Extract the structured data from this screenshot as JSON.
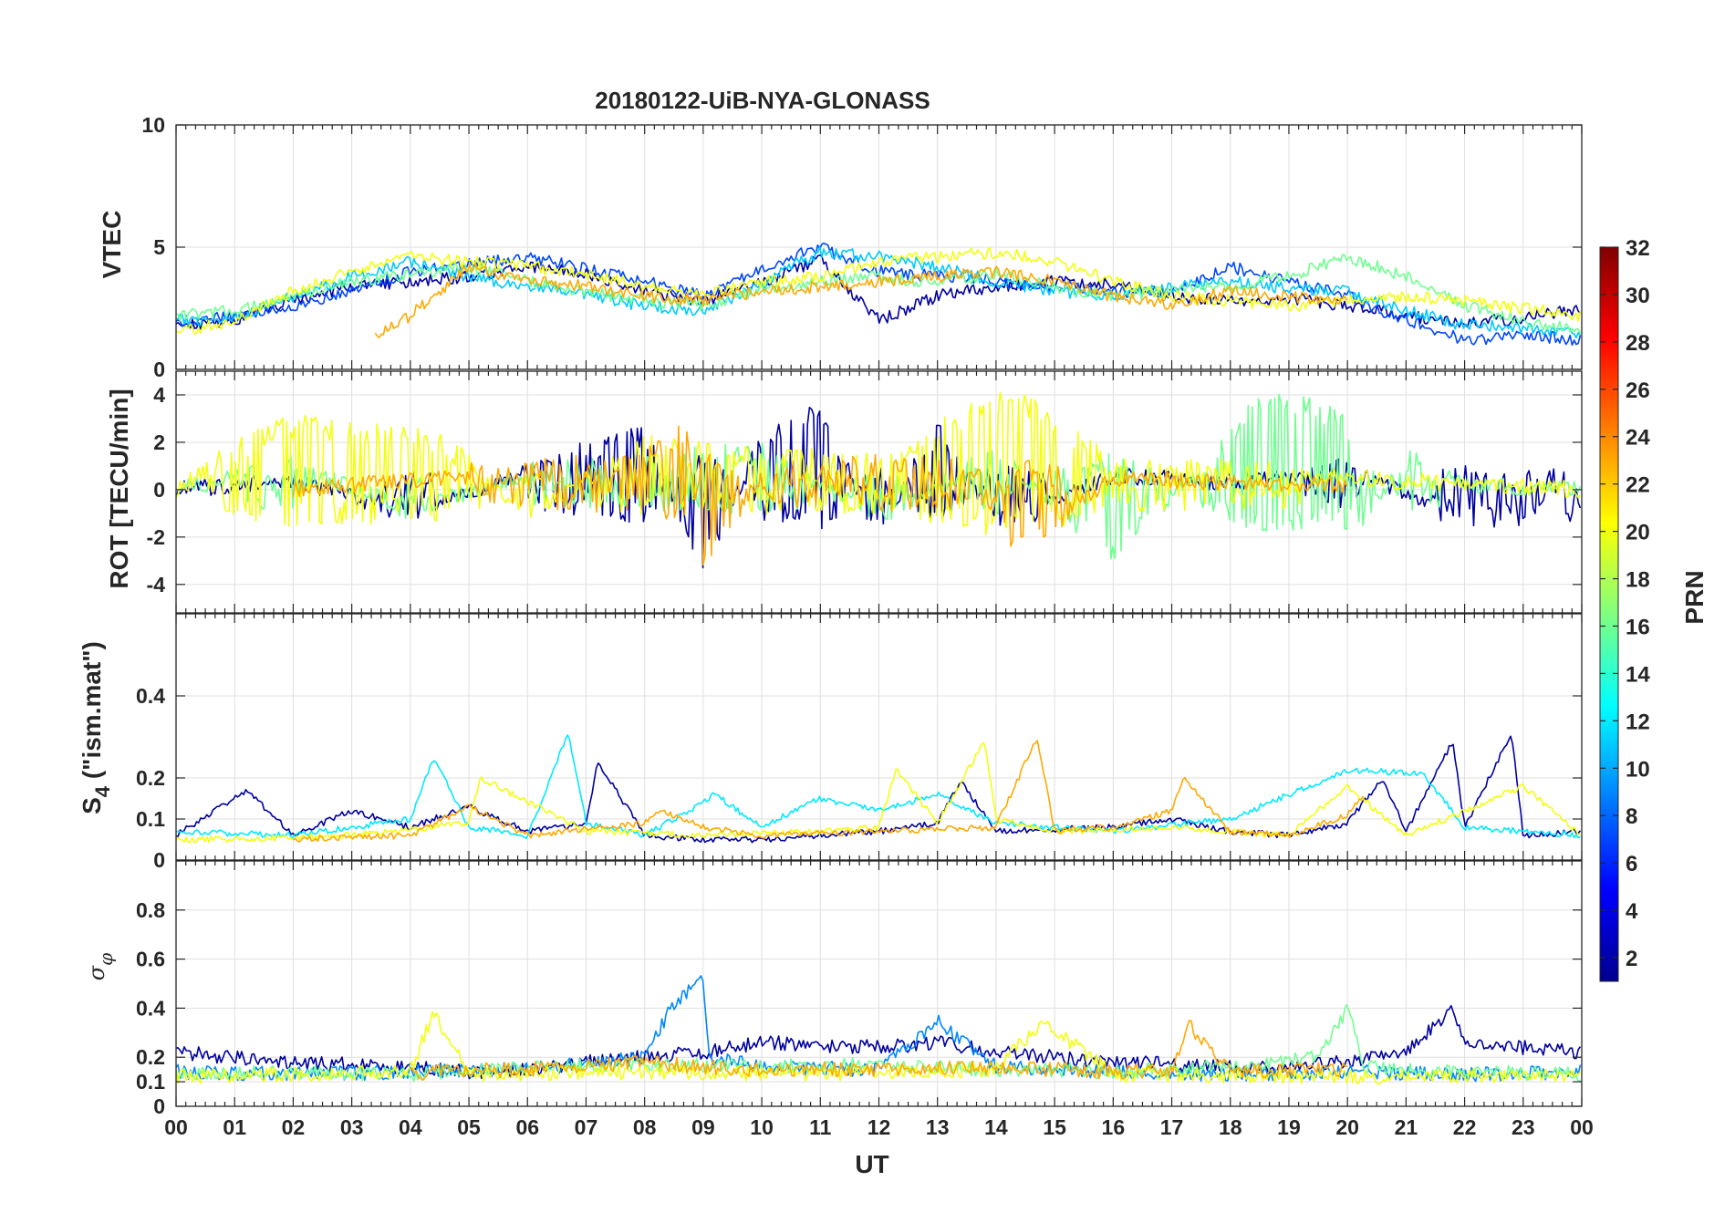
{
  "chart_data": [
    {
      "type": "line",
      "panel": "vtec",
      "title": "20180122-UiB-NYA-GLONASS",
      "ylabel": "VTEC",
      "ylim": [
        0,
        10
      ],
      "yticks": [
        0,
        5,
        10
      ],
      "xlim": [
        0,
        24
      ],
      "series_note": "multiple GLONASS PRN traces, coloured by PRN",
      "series": [
        {
          "prn": 2,
          "x": [
            0,
            1,
            2,
            3,
            4,
            5,
            6,
            7,
            8,
            9,
            10,
            11,
            12,
            13,
            14,
            15,
            16,
            17,
            18,
            19,
            20,
            21,
            22,
            23,
            24
          ],
          "y": [
            1.8,
            2.0,
            2.8,
            3.4,
            3.6,
            3.8,
            4.2,
            3.9,
            3.2,
            2.8,
            3.5,
            4.5,
            2.0,
            3.0,
            3.4,
            3.6,
            3.5,
            3.0,
            2.8,
            2.9,
            2.6,
            2.2,
            1.9,
            2.1,
            2.5
          ]
        },
        {
          "prn": 7,
          "x": [
            0,
            1,
            2,
            3,
            4,
            5,
            6,
            7,
            8,
            9,
            10,
            11,
            12,
            13,
            14,
            15,
            16,
            17,
            18,
            19,
            20,
            21,
            22,
            23,
            24
          ],
          "y": [
            1.9,
            2.2,
            2.6,
            3.2,
            4.0,
            4.3,
            4.6,
            4.1,
            3.6,
            3.0,
            4.2,
            5.0,
            4.0,
            3.8,
            3.6,
            3.4,
            3.2,
            3.1,
            4.2,
            3.6,
            3.0,
            2.0,
            1.2,
            1.4,
            1.2
          ]
        },
        {
          "prn": 11,
          "x": [
            0,
            1,
            2,
            3,
            4,
            5,
            6,
            7,
            8,
            9,
            10,
            11,
            12,
            13,
            14,
            15,
            16,
            17,
            18,
            19,
            20,
            21,
            22,
            23,
            24
          ],
          "y": [
            2.0,
            2.1,
            3.0,
            3.8,
            4.4,
            3.8,
            3.4,
            3.0,
            2.6,
            2.4,
            3.5,
            4.8,
            4.6,
            4.2,
            3.6,
            3.2,
            3.0,
            3.4,
            3.6,
            3.3,
            3.2,
            2.4,
            1.8,
            1.7,
            1.4
          ]
        },
        {
          "prn": 16,
          "x": [
            0,
            1,
            2,
            3,
            4,
            5,
            6,
            7,
            8,
            9,
            10,
            11,
            12,
            13,
            14,
            15,
            16,
            17,
            18,
            19,
            20,
            21,
            22,
            23,
            24
          ],
          "y": [
            2.2,
            2.4,
            3.0,
            3.6,
            3.9,
            4.2,
            3.6,
            3.2,
            2.8,
            2.6,
            3.3,
            3.6,
            3.8,
            3.5,
            3.9,
            3.4,
            3.0,
            3.2,
            3.4,
            3.8,
            4.6,
            3.8,
            2.6,
            2.0,
            1.6
          ]
        },
        {
          "prn": 20,
          "x": [
            0,
            1,
            2,
            3,
            4,
            5,
            6,
            7,
            8,
            9,
            10,
            11,
            12,
            13,
            14,
            15,
            16,
            17,
            18,
            19,
            20,
            21,
            22,
            23,
            24
          ],
          "y": [
            1.5,
            2.0,
            3.2,
            4.0,
            4.6,
            4.4,
            4.2,
            3.9,
            3.4,
            3.0,
            3.6,
            3.8,
            4.4,
            4.6,
            4.8,
            4.4,
            3.6,
            3.0,
            2.8,
            2.6,
            2.8,
            3.0,
            2.8,
            2.5,
            2.2
          ]
        },
        {
          "prn": 23,
          "x": [
            3.4,
            4,
            5,
            6,
            7,
            8,
            9,
            10,
            11,
            12,
            13,
            14,
            15,
            16,
            17,
            18,
            19,
            20
          ],
          "y": [
            1.4,
            2.2,
            4.2,
            3.6,
            3.4,
            3.0,
            2.8,
            3.2,
            3.4,
            3.6,
            3.8,
            4.0,
            3.6,
            3.0,
            2.6,
            3.2,
            3.0,
            2.8
          ]
        }
      ],
      "xlabel": ""
    },
    {
      "type": "line",
      "panel": "rot",
      "ylabel": "ROT [TECU/min]",
      "ylim": [
        -5.2,
        5
      ],
      "yticks": [
        -4,
        -2,
        0,
        2,
        4
      ],
      "xlim": [
        0,
        24
      ],
      "series_note": "rate of TEC, fluctuating about 0 with peaks up to about +4 and -3",
      "series": [
        {
          "prn": 2,
          "x": [
            0,
            2,
            4,
            6,
            8,
            9,
            10,
            11,
            12,
            13,
            14,
            16,
            18,
            20,
            22,
            24
          ],
          "y": [
            0,
            0.4,
            -1.0,
            0.8,
            2.3,
            -3.0,
            2.0,
            3.2,
            -1.8,
            2.5,
            -1.5,
            0.6,
            0.3,
            0.8,
            -1.2,
            -0.8
          ]
        },
        {
          "prn": 16,
          "x": [
            0,
            2,
            4,
            6,
            8,
            10,
            12,
            14,
            16,
            18,
            18.5,
            20,
            20.2,
            21,
            22,
            24
          ],
          "y": [
            0,
            1.0,
            -0.8,
            0.6,
            1.0,
            1.6,
            -1.2,
            1.4,
            -2.6,
            2.0,
            3.8,
            3.0,
            -1.5,
            1.2,
            0.2,
            0
          ]
        },
        {
          "prn": 20,
          "x": [
            0,
            1.8,
            4.5,
            6,
            8,
            9.2,
            12,
            14.3,
            16,
            20,
            24
          ],
          "y": [
            0,
            2.7,
            2.0,
            -1.0,
            1.8,
            1.4,
            1.2,
            4.0,
            1.0,
            0.5,
            0
          ]
        },
        {
          "prn": 23,
          "x": [
            2,
            4,
            6,
            8,
            8.7,
            9,
            10,
            12,
            14,
            14.3,
            16,
            18,
            20
          ],
          "y": [
            0,
            0.4,
            0.8,
            1.2,
            2.6,
            -2.9,
            0.6,
            1.0,
            0.8,
            -2.6,
            0.5,
            0.3,
            0.2
          ]
        }
      ],
      "xlabel": ""
    },
    {
      "type": "line",
      "panel": "s4",
      "ylabel": "S_4 (\"ism.mat\")",
      "ylabel_main": "S",
      "ylabel_sub": "4",
      "ylabel_rest": " (\"ism.mat\")",
      "ylim": [
        0,
        0.6
      ],
      "yticks": [
        0,
        0.1,
        0.2,
        0.4
      ],
      "xlim": [
        0,
        24
      ],
      "series_note": "amplitude scintillation index; baseline about 0.05 with bursts up to about 0.3",
      "series": [
        {
          "prn": 2,
          "x": [
            0,
            1.2,
            2,
            3,
            4,
            5,
            6,
            7,
            7.2,
            8,
            9,
            10,
            11,
            12,
            13,
            13.4,
            14,
            16,
            17,
            18,
            19,
            20,
            20.6,
            21,
            21.8,
            22,
            22.8,
            23,
            24
          ],
          "y": [
            0.06,
            0.17,
            0.06,
            0.12,
            0.08,
            0.13,
            0.07,
            0.09,
            0.24,
            0.06,
            0.05,
            0.05,
            0.06,
            0.07,
            0.09,
            0.19,
            0.07,
            0.08,
            0.1,
            0.07,
            0.06,
            0.09,
            0.2,
            0.07,
            0.29,
            0.08,
            0.31,
            0.06,
            0.07
          ]
        },
        {
          "prn": 12,
          "x": [
            0,
            2,
            4,
            4.4,
            5,
            6,
            6.7,
            7,
            8,
            9,
            9.2,
            10,
            11,
            12,
            13,
            14,
            16,
            18,
            20,
            21.3,
            22,
            24
          ],
          "y": [
            0.07,
            0.06,
            0.1,
            0.25,
            0.08,
            0.06,
            0.31,
            0.09,
            0.06,
            0.14,
            0.16,
            0.08,
            0.15,
            0.12,
            0.16,
            0.09,
            0.07,
            0.1,
            0.22,
            0.21,
            0.08,
            0.06
          ]
        },
        {
          "prn": 20,
          "x": [
            0,
            1,
            3,
            5,
            5.2,
            7,
            9,
            11,
            12,
            12.3,
            13,
            13.8,
            14,
            15,
            17,
            19,
            20,
            21,
            23,
            24
          ],
          "y": [
            0.05,
            0.05,
            0.06,
            0.09,
            0.2,
            0.07,
            0.06,
            0.07,
            0.08,
            0.22,
            0.09,
            0.29,
            0.1,
            0.07,
            0.08,
            0.06,
            0.18,
            0.06,
            0.18,
            0.06
          ]
        },
        {
          "prn": 23,
          "x": [
            2,
            4,
            5,
            6,
            8,
            8.3,
            9,
            10,
            12,
            14,
            14.7,
            15,
            16,
            17,
            17.2,
            18,
            19,
            20,
            20.3
          ],
          "y": [
            0.05,
            0.06,
            0.13,
            0.06,
            0.09,
            0.12,
            0.08,
            0.06,
            0.07,
            0.08,
            0.3,
            0.07,
            0.08,
            0.12,
            0.2,
            0.07,
            0.06,
            0.11,
            0.16
          ]
        }
      ],
      "xlabel": ""
    },
    {
      "type": "line",
      "panel": "sigma_phi",
      "ylabel": "σ_φ",
      "ylabel_main": "σ",
      "ylabel_sub": "φ",
      "ylim": [
        0,
        1
      ],
      "yticks": [
        0,
        0.1,
        0.2,
        0.4,
        0.6,
        0.8
      ],
      "xlim": [
        0,
        24
      ],
      "xlabel": "UT",
      "xtick_labels": [
        "00",
        "01",
        "02",
        "03",
        "04",
        "05",
        "06",
        "07",
        "08",
        "09",
        "10",
        "11",
        "12",
        "13",
        "14",
        "15",
        "16",
        "17",
        "18",
        "19",
        "20",
        "21",
        "22",
        "23",
        "00"
      ],
      "series_note": "phase scintillation index; baseline about 0.15 with spikes up to about 0.53 near 09 UT",
      "series": [
        {
          "prn": 2,
          "x": [
            0,
            1,
            2,
            3,
            4,
            5,
            6,
            7,
            8,
            9,
            10,
            11,
            12,
            13,
            14,
            15,
            16,
            17,
            18,
            19,
            20,
            21,
            21.8,
            22,
            23,
            24
          ],
          "y": [
            0.22,
            0.2,
            0.18,
            0.17,
            0.16,
            0.14,
            0.15,
            0.18,
            0.2,
            0.22,
            0.26,
            0.25,
            0.24,
            0.26,
            0.22,
            0.2,
            0.18,
            0.17,
            0.16,
            0.16,
            0.18,
            0.22,
            0.4,
            0.26,
            0.24,
            0.22
          ]
        },
        {
          "prn": 9,
          "x": [
            0,
            2,
            4,
            6,
            8,
            8.5,
            9,
            9.1,
            10,
            12,
            13,
            14,
            16,
            18,
            20,
            22,
            24
          ],
          "y": [
            0.14,
            0.13,
            0.14,
            0.15,
            0.2,
            0.42,
            0.53,
            0.2,
            0.16,
            0.15,
            0.35,
            0.16,
            0.14,
            0.13,
            0.14,
            0.13,
            0.14
          ]
        },
        {
          "prn": 16,
          "x": [
            0,
            2,
            4,
            6,
            8,
            10,
            12,
            14,
            16,
            18,
            19.5,
            20,
            20.3,
            21,
            22,
            24
          ],
          "y": [
            0.13,
            0.14,
            0.13,
            0.16,
            0.17,
            0.16,
            0.17,
            0.15,
            0.14,
            0.16,
            0.2,
            0.4,
            0.16,
            0.15,
            0.14,
            0.13
          ]
        },
        {
          "prn": 20,
          "x": [
            0,
            2,
            4,
            4.4,
            5,
            8,
            11,
            14,
            14.8,
            16,
            20,
            24
          ],
          "y": [
            0.12,
            0.13,
            0.14,
            0.38,
            0.13,
            0.14,
            0.13,
            0.15,
            0.35,
            0.13,
            0.12,
            0.13
          ]
        },
        {
          "prn": 23,
          "x": [
            4,
            5,
            6,
            7,
            8,
            9,
            10,
            12,
            14,
            16,
            17,
            17.3,
            18,
            20
          ],
          "y": [
            0.13,
            0.15,
            0.15,
            0.17,
            0.18,
            0.16,
            0.15,
            0.15,
            0.16,
            0.14,
            0.15,
            0.33,
            0.14,
            0.15
          ]
        }
      ]
    }
  ],
  "colorbar": {
    "label": "PRN",
    "range": [
      1,
      32
    ],
    "ticks": [
      2,
      4,
      6,
      8,
      10,
      12,
      14,
      16,
      18,
      20,
      22,
      24,
      26,
      28,
      30,
      32
    ],
    "colormap": "jet"
  },
  "colors": {
    "axis": "#262626",
    "grid": "#dfdfdf"
  }
}
